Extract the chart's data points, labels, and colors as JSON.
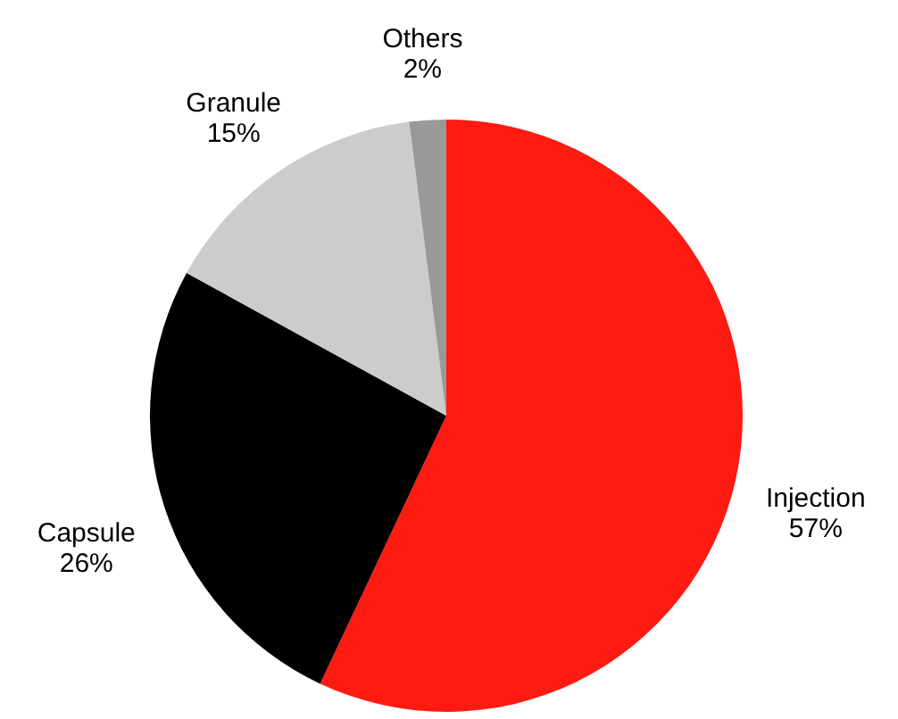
{
  "chart_data": {
    "type": "pie",
    "categories": [
      "Injection",
      "Capsule",
      "Granule",
      "Others"
    ],
    "values": [
      57,
      26,
      15,
      2
    ],
    "colors": [
      "#ff1a12",
      "#000000",
      "#cccccc",
      "#999999"
    ],
    "value_labels": [
      "57%",
      "26%",
      "15%",
      "2%"
    ]
  }
}
